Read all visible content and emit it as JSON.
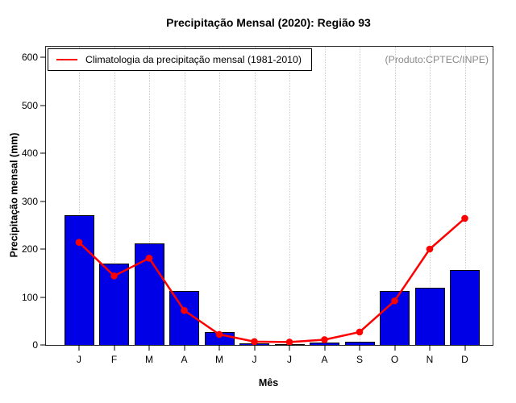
{
  "page": {
    "title": "Precipitação Mensal (2020): Região 93",
    "source_note": "(Produto:CPTEC/INPE)"
  },
  "legend": {
    "label": "Climatologia da precipitação mensal (1981-2010)"
  },
  "chart_data": {
    "type": "bar",
    "title": "Precipitação Mensal (2020): Região 93",
    "xlabel": "Mês",
    "ylabel": "Precipitação mensal (mm)",
    "ylim": [
      0,
      600
    ],
    "yticks": [
      0,
      100,
      200,
      300,
      400,
      500,
      600
    ],
    "categories": [
      "J",
      "F",
      "M",
      "A",
      "M",
      "J",
      "J",
      "A",
      "S",
      "O",
      "N",
      "D"
    ],
    "series": [
      {
        "name": "Precipitação mensal 2020",
        "type": "bar",
        "color": "#0000e6",
        "values": [
          270,
          170,
          212,
          112,
          27,
          3,
          1,
          5,
          7,
          112,
          120,
          156
        ]
      },
      {
        "name": "Climatologia da precipitação mensal (1981-2010)",
        "type": "line",
        "color": "#ff0000",
        "values": [
          214,
          144,
          181,
          72,
          22,
          7,
          6,
          11,
          27,
          92,
          200,
          264
        ]
      }
    ],
    "legend_position": "topleft",
    "grid": "vertical-dotted",
    "annotation": "(Produto:CPTEC/INPE)"
  },
  "colors": {
    "bar": "#0000e6",
    "bar_border": "#000000",
    "line": "#ff0000",
    "grid": "#cfcfcf",
    "note": "#898989",
    "box": "#2b2b2b"
  }
}
